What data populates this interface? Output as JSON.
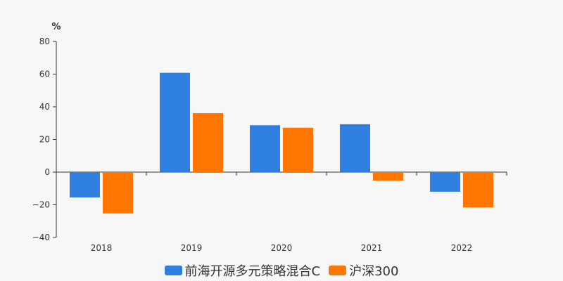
{
  "chart_data": {
    "type": "bar",
    "unit_label": "%",
    "categories": [
      "2018",
      "2019",
      "2020",
      "2021",
      "2022"
    ],
    "series": [
      {
        "name": "前海开源多元策略混合C",
        "color": "#2f7fe0",
        "values": [
          -15.5,
          60.8,
          28.7,
          29.3,
          -12.0
        ]
      },
      {
        "name": "沪深300",
        "color": "#ff7700",
        "values": [
          -25.3,
          36.1,
          27.2,
          -5.2,
          -21.6
        ]
      }
    ],
    "ylim": [
      -40,
      80
    ],
    "yticks": [
      -40,
      -20,
      0,
      20,
      40,
      60,
      80
    ],
    "grid": false,
    "legend_position": "bottom"
  }
}
